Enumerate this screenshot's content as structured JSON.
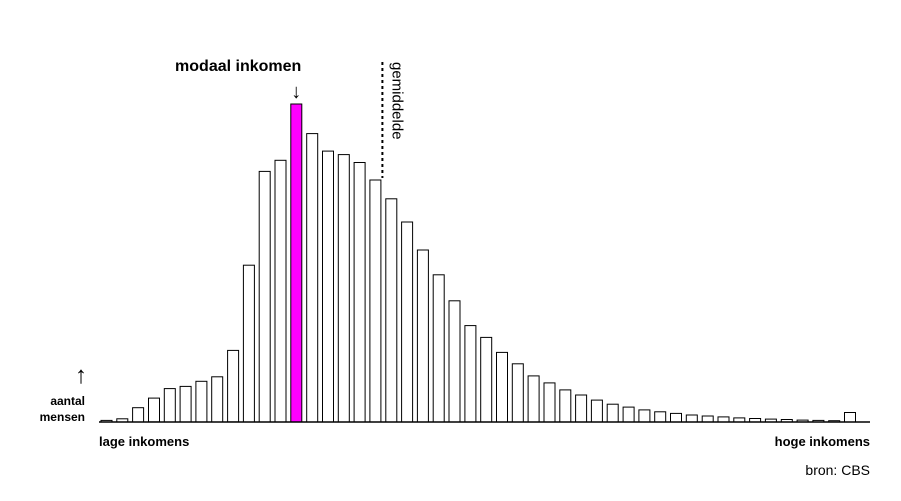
{
  "chart_data": {
    "type": "bar",
    "ylabel_arrow": "↑",
    "ylabel": [
      "aantal",
      "mensen"
    ],
    "xlabel_left": "lage inkomens",
    "xlabel_right": "hoge inkomens",
    "source": "bron: CBS",
    "mode": {
      "label": "modaal inkomen",
      "arrow": "↓",
      "index": 12,
      "color": "#ff00ff"
    },
    "mean": {
      "label": "gemiddelde",
      "after_index": 17
    },
    "bar_color": "#ffffff",
    "bar_stroke": "#000000",
    "values": [
      0.5,
      1,
      4.5,
      7.5,
      10.5,
      11.2,
      12.8,
      14.2,
      22.5,
      49.3,
      78.8,
      82.3,
      100,
      90.7,
      85.2,
      84.1,
      81.6,
      76.1,
      70.2,
      62.9,
      54.1,
      46.3,
      38.1,
      30.3,
      26.6,
      21.9,
      18.3,
      14.5,
      12.3,
      10.1,
      8.5,
      6.9,
      5.6,
      4.7,
      3.8,
      3.2,
      2.7,
      2.2,
      1.9,
      1.6,
      1.3,
      1.1,
      0.9,
      0.8,
      0.6,
      0.5,
      0.4,
      3.0
    ],
    "ylim": [
      0,
      100
    ],
    "grid": false,
    "legend": "none"
  }
}
